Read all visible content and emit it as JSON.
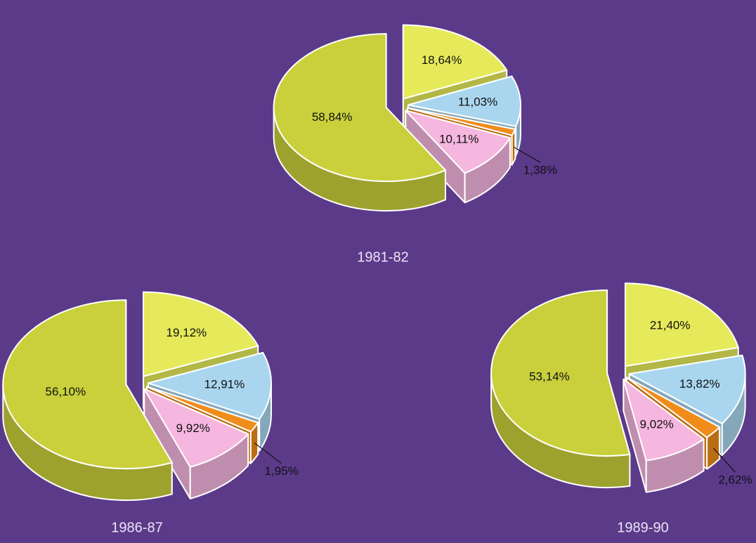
{
  "chart_data": [
    {
      "type": "pie",
      "title": "1981-82",
      "values": [
        18.64,
        11.03,
        1.38,
        10.11,
        58.84
      ],
      "value_labels": [
        "18,64%",
        "11,03%",
        "1,38%",
        "10,11%",
        "58,84%"
      ],
      "colors": [
        "#e6ea5a",
        "#a9d6ee",
        "#f08c1a",
        "#f5b6df",
        "#c9d03c"
      ]
    },
    {
      "type": "pie",
      "title": "1986-87",
      "values": [
        19.12,
        12.91,
        1.95,
        9.92,
        56.1
      ],
      "value_labels": [
        "19,12%",
        "12,91%",
        "1,95%",
        "9,92%",
        "56,10%"
      ],
      "colors": [
        "#e6ea5a",
        "#a9d6ee",
        "#f08c1a",
        "#f5b6df",
        "#c9d03c"
      ]
    },
    {
      "type": "pie",
      "title": "1989-90",
      "values": [
        21.4,
        13.82,
        2.62,
        9.02,
        53.14
      ],
      "value_labels": [
        "21,40%",
        "13,82%",
        "2,62%",
        "9,02%",
        "53,14%"
      ],
      "colors": [
        "#e6ea5a",
        "#a9d6ee",
        "#f08c1a",
        "#f5b6df",
        "#c9d03c"
      ]
    }
  ]
}
